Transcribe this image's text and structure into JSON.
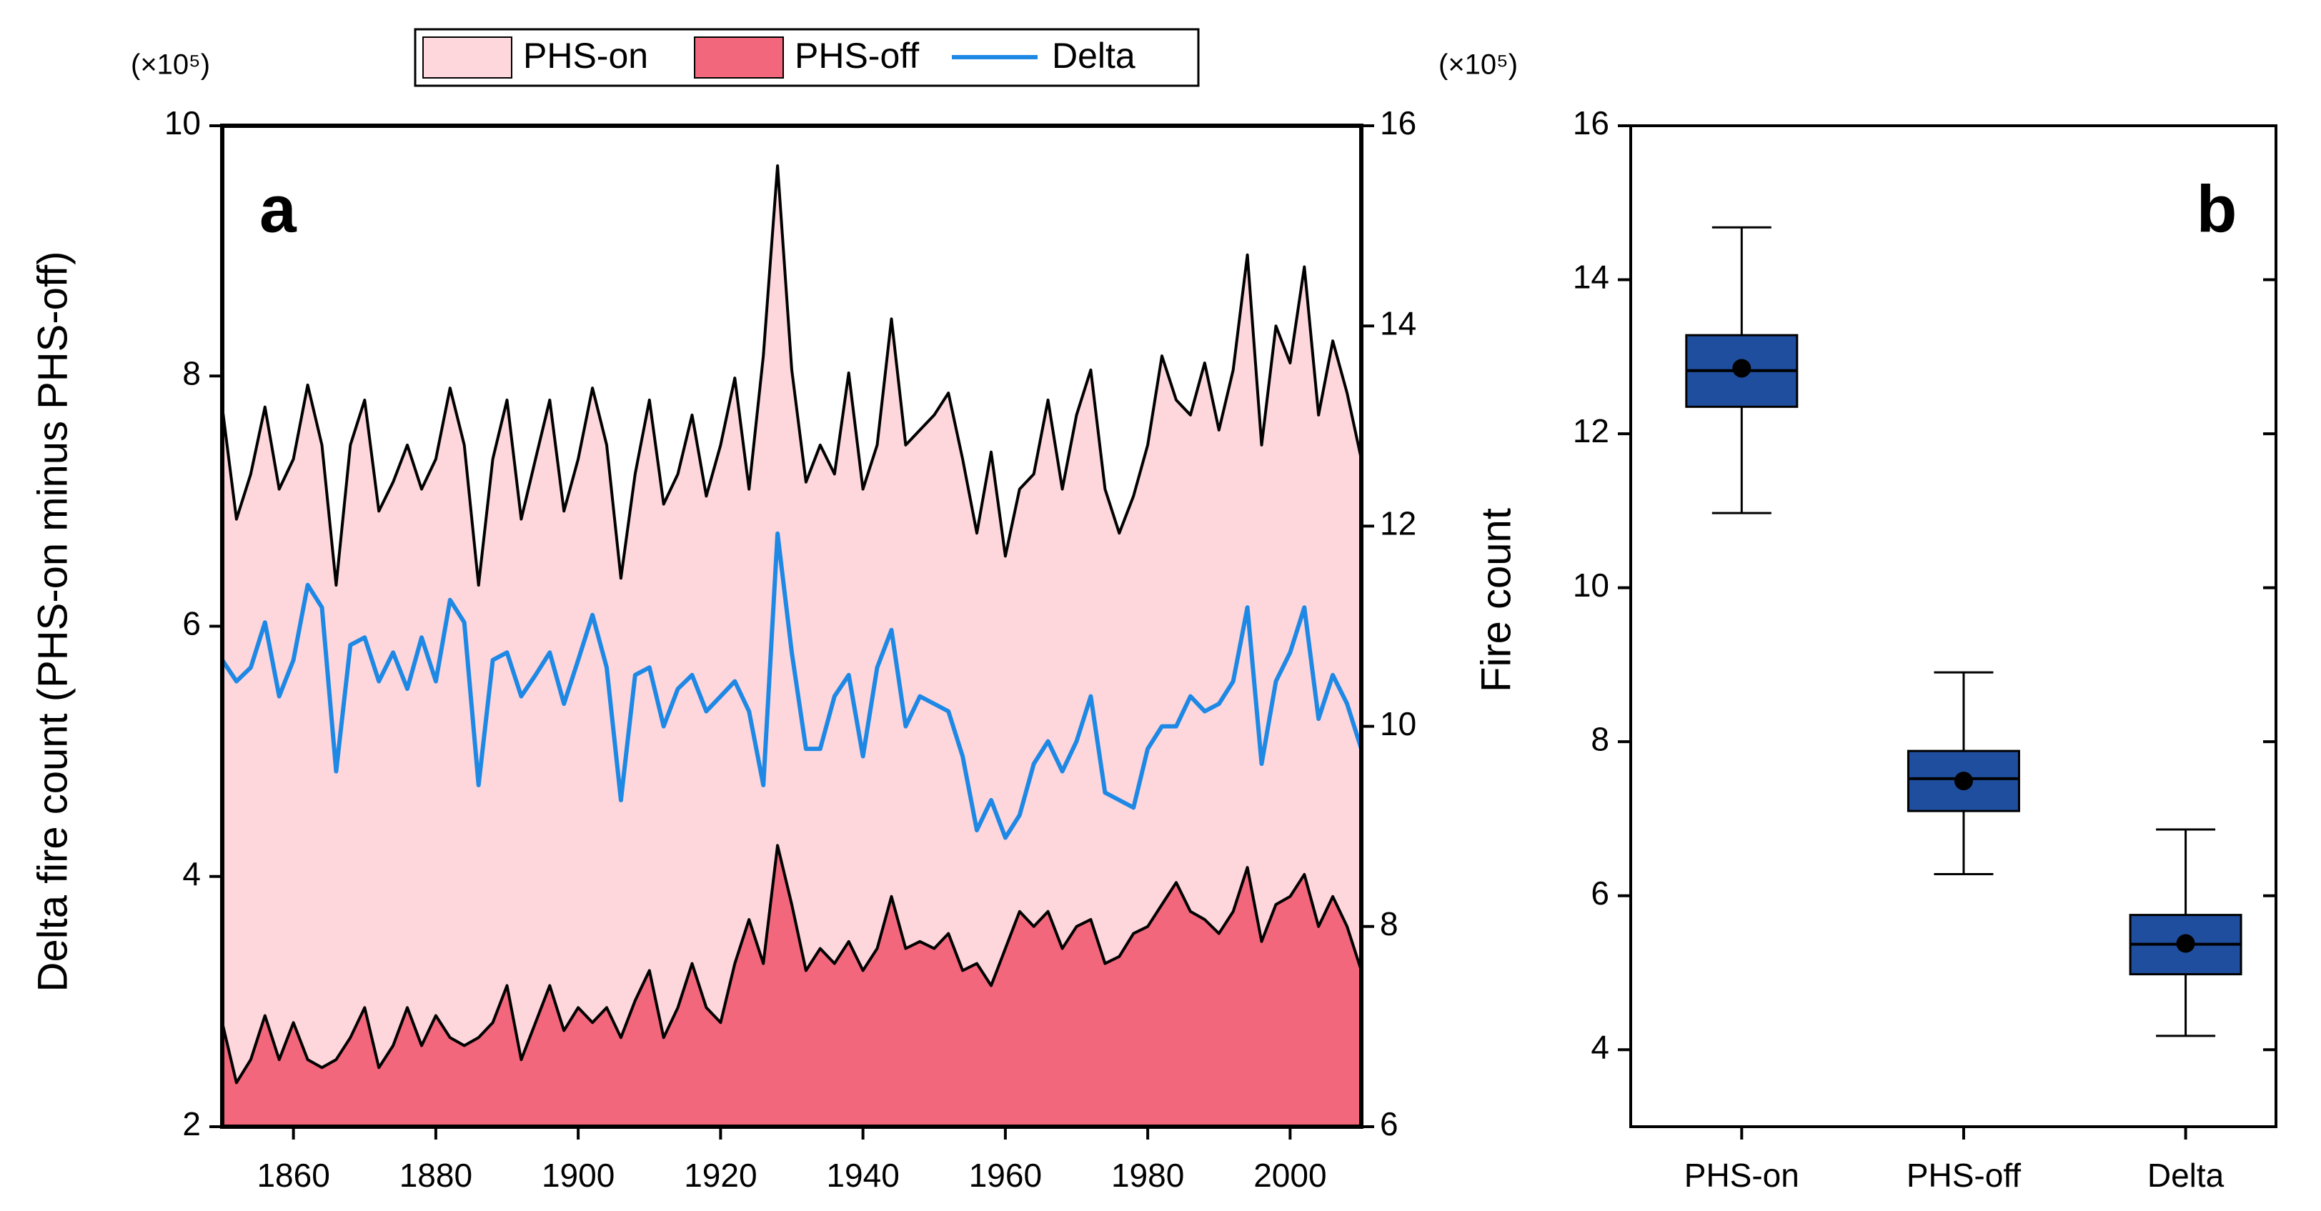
{
  "chart_data": [
    {
      "type": "area",
      "panel_label": "a",
      "y_unit_label": "(×10⁵)",
      "y2_unit_label": "(×10⁵)",
      "ylabel": "Delta fire count (PHS-on minus PHS-off)",
      "xlim": [
        1850,
        2010
      ],
      "xticks": [
        1860,
        1880,
        1900,
        1920,
        1940,
        1960,
        1980,
        2000
      ],
      "ylim": [
        2,
        10
      ],
      "yticks": [
        2,
        4,
        6,
        8,
        10
      ],
      "y2lim": [
        6,
        16
      ],
      "y2ticks": [
        6,
        8,
        10,
        12,
        14,
        16
      ],
      "x": [
        1850,
        1852,
        1854,
        1856,
        1858,
        1860,
        1862,
        1864,
        1866,
        1868,
        1870,
        1872,
        1874,
        1876,
        1878,
        1880,
        1882,
        1884,
        1886,
        1888,
        1890,
        1892,
        1894,
        1896,
        1898,
        1900,
        1902,
        1904,
        1906,
        1908,
        1910,
        1912,
        1914,
        1916,
        1918,
        1920,
        1922,
        1924,
        1926,
        1928,
        1930,
        1932,
        1934,
        1936,
        1938,
        1940,
        1942,
        1944,
        1946,
        1948,
        1950,
        1952,
        1954,
        1956,
        1958,
        1960,
        1962,
        1964,
        1966,
        1968,
        1970,
        1972,
        1974,
        1976,
        1978,
        1980,
        1982,
        1984,
        1986,
        1988,
        1990,
        1992,
        1994,
        1996,
        1998,
        2000,
        2002,
        2004,
        2006,
        2008,
        2010
      ],
      "series": [
        {
          "name": "PHS-on",
          "type": "area",
          "axis": "y2",
          "color": "#fdd7dc",
          "line_color": "#000000",
          "values": [
            13.19,
            12.07,
            12.52,
            13.19,
            12.37,
            12.67,
            13.41,
            12.81,
            11.41,
            12.81,
            13.26,
            12.15,
            12.44,
            12.81,
            12.37,
            12.67,
            13.38,
            12.81,
            11.41,
            12.67,
            13.26,
            12.07,
            12.67,
            13.26,
            12.15,
            12.67,
            13.38,
            12.81,
            11.48,
            12.52,
            13.26,
            12.22,
            12.52,
            13.11,
            12.3,
            12.81,
            13.48,
            12.37,
            13.7,
            15.6,
            13.56,
            12.44,
            12.81,
            12.52,
            13.53,
            12.37,
            12.81,
            14.07,
            12.81,
            12.96,
            13.11,
            13.33,
            12.67,
            11.93,
            12.74,
            11.7,
            12.37,
            12.52,
            13.26,
            12.37,
            13.11,
            13.56,
            12.37,
            11.93,
            12.3,
            12.81,
            13.7,
            13.26,
            13.11,
            13.63,
            12.96,
            13.56,
            14.71,
            12.81,
            14.0,
            13.63,
            14.59,
            13.11,
            13.85,
            13.33,
            12.67
          ]
        },
        {
          "name": "PHS-off",
          "type": "area",
          "axis": "y2",
          "color": "#f2677b",
          "line_color": "#000000",
          "values": [
            7.04,
            6.44,
            6.67,
            7.11,
            6.67,
            7.04,
            6.67,
            6.59,
            6.67,
            6.89,
            7.19,
            6.59,
            6.81,
            7.19,
            6.81,
            7.11,
            6.89,
            6.81,
            6.89,
            7.04,
            7.41,
            6.67,
            7.04,
            7.41,
            6.96,
            7.19,
            7.04,
            7.19,
            6.89,
            7.26,
            7.56,
            6.89,
            7.19,
            7.63,
            7.19,
            7.04,
            7.63,
            8.07,
            7.63,
            8.81,
            8.22,
            7.56,
            7.78,
            7.63,
            7.85,
            7.56,
            7.78,
            8.3,
            7.78,
            7.85,
            7.78,
            7.93,
            7.56,
            7.63,
            7.41,
            7.78,
            8.15,
            8.0,
            8.15,
            7.78,
            8.0,
            8.07,
            7.63,
            7.7,
            7.93,
            8.0,
            8.22,
            8.44,
            8.15,
            8.07,
            7.93,
            8.15,
            8.59,
            7.85,
            8.22,
            8.3,
            8.52,
            8.0,
            8.3,
            8.0,
            7.56
          ]
        },
        {
          "name": "Delta",
          "type": "line",
          "axis": "y",
          "color": "#1e88e5",
          "values": [
            5.73,
            5.56,
            5.67,
            6.03,
            5.44,
            5.73,
            6.33,
            6.15,
            4.84,
            5.85,
            5.91,
            5.56,
            5.79,
            5.5,
            5.91,
            5.56,
            6.21,
            6.03,
            4.73,
            5.73,
            5.79,
            5.44,
            5.61,
            5.79,
            5.38,
            5.73,
            6.09,
            5.67,
            4.61,
            5.61,
            5.67,
            5.2,
            5.5,
            5.61,
            5.32,
            5.44,
            5.56,
            5.32,
            4.73,
            6.74,
            5.79,
            5.02,
            5.02,
            5.44,
            5.61,
            4.96,
            5.67,
            5.97,
            5.2,
            5.44,
            5.38,
            5.32,
            4.96,
            4.37,
            4.61,
            4.31,
            4.49,
            4.9,
            5.08,
            4.84,
            5.08,
            5.44,
            4.67,
            4.61,
            4.55,
            5.02,
            5.2,
            5.2,
            5.44,
            5.32,
            5.38,
            5.56,
            6.15,
            4.9,
            5.56,
            5.79,
            6.15,
            5.26,
            5.61,
            5.38,
            5.02
          ]
        }
      ]
    },
    {
      "type": "box",
      "panel_label": "b",
      "y_unit_label": "(×10⁵)",
      "ylabel": "Fire count",
      "ylim": [
        3,
        16
      ],
      "yticks": [
        4,
        6,
        8,
        10,
        12,
        14,
        16
      ],
      "categories": [
        "PHS-on",
        "PHS-off",
        "Delta"
      ],
      "color": "#1f4e9e",
      "min": [
        10.97,
        6.28,
        4.18
      ],
      "q1": [
        12.35,
        7.1,
        4.98
      ],
      "median": [
        12.82,
        7.52,
        5.37
      ],
      "q3": [
        13.28,
        7.88,
        5.75
      ],
      "max": [
        14.68,
        8.9,
        6.86
      ],
      "mean": [
        12.85,
        7.49,
        5.38
      ]
    }
  ]
}
